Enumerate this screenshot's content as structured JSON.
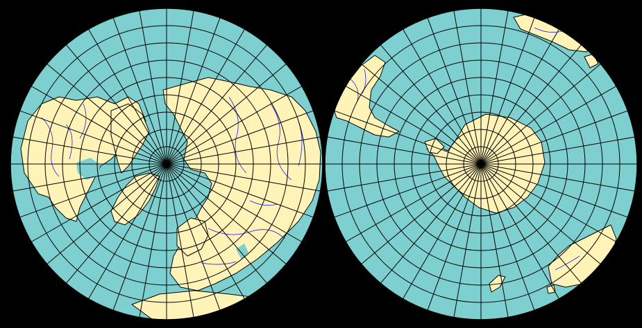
{
  "map": {
    "projection": "azimuthal-equidistant-dual-hemisphere",
    "colors": {
      "background": "#000000",
      "ocean": "#7ecfcf",
      "land": "#fff3b8",
      "coastline": "#000000",
      "rivers": "#1a1aff",
      "graticule": "#000000"
    },
    "graticule": {
      "parallel_step_deg": 10,
      "meridian_step_deg": 10
    },
    "hemispheres": [
      {
        "name": "northern-hemisphere",
        "pole": "north"
      },
      {
        "name": "southern-hemisphere",
        "pole": "south"
      }
    ]
  }
}
